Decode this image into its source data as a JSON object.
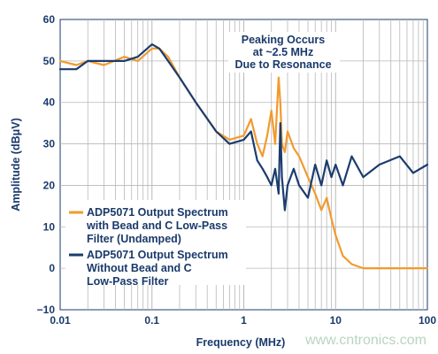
{
  "chart_data": {
    "type": "line",
    "xscale": "log",
    "xlim": [
      0.01,
      100
    ],
    "ylim": [
      -10,
      60
    ],
    "xlabel": "Frequency (MHz)",
    "ylabel": "Amplitude (dBμV)",
    "x_ticks": [
      "0.01",
      "0.1",
      "1",
      "10",
      "100"
    ],
    "y_ticks": [
      "−10",
      "0",
      "10",
      "20",
      "30",
      "40",
      "50",
      "60"
    ],
    "grid": true,
    "annotation": [
      "Peaking Occurs",
      "at ~2.5 MHz",
      "Due to Resonance"
    ],
    "legend_position": "lower-left",
    "series": [
      {
        "name": [
          "ADP5071 Output Spectrum",
          "with Bead and C Low-Pass",
          "Filter (Undamped)"
        ],
        "color": "#f29a2e",
        "x": [
          0.01,
          0.015,
          0.02,
          0.03,
          0.05,
          0.07,
          0.1,
          0.12,
          0.15,
          0.2,
          0.3,
          0.5,
          0.7,
          1.0,
          1.2,
          1.4,
          1.6,
          1.8,
          2.0,
          2.2,
          2.4,
          2.5,
          2.6,
          2.8,
          3.0,
          3.5,
          4.0,
          5.0,
          6.0,
          7.0,
          8.0,
          9.0,
          10.0,
          12.0,
          15.0,
          20.0,
          30.0,
          50.0,
          70.0,
          100.0
        ],
        "y": [
          50,
          49,
          50,
          49,
          51,
          50,
          53,
          53,
          51,
          46,
          40,
          33,
          31,
          32,
          36,
          30,
          27,
          32,
          38,
          30,
          46,
          40,
          30,
          28,
          33,
          29,
          27,
          22,
          18,
          14,
          17,
          12,
          8,
          3,
          1,
          0,
          0,
          0,
          0,
          0
        ]
      },
      {
        "name": [
          "ADP5071 Output Spectrum",
          "Without Bead and C",
          "Low-Pass Filter"
        ],
        "color": "#1b3c6e",
        "x": [
          0.01,
          0.015,
          0.02,
          0.03,
          0.05,
          0.07,
          0.1,
          0.12,
          0.15,
          0.2,
          0.3,
          0.5,
          0.7,
          1.0,
          1.2,
          1.4,
          1.6,
          1.8,
          2.0,
          2.2,
          2.4,
          2.5,
          2.6,
          2.8,
          3.0,
          3.5,
          4.0,
          5.0,
          6.0,
          7.0,
          8.0,
          9.0,
          10.0,
          12.0,
          15.0,
          20.0,
          30.0,
          50.0,
          70.0,
          100.0
        ],
        "y": [
          48,
          48,
          50,
          50,
          50,
          51,
          54,
          53,
          50,
          46,
          40,
          33,
          30,
          31,
          33,
          26,
          24,
          22,
          20,
          24,
          18,
          35,
          22,
          14,
          20,
          24,
          20,
          17,
          25,
          20,
          26,
          22,
          25,
          20,
          27,
          22,
          25,
          27,
          23,
          25
        ]
      }
    ]
  },
  "watermark": "www.cntronics.com"
}
